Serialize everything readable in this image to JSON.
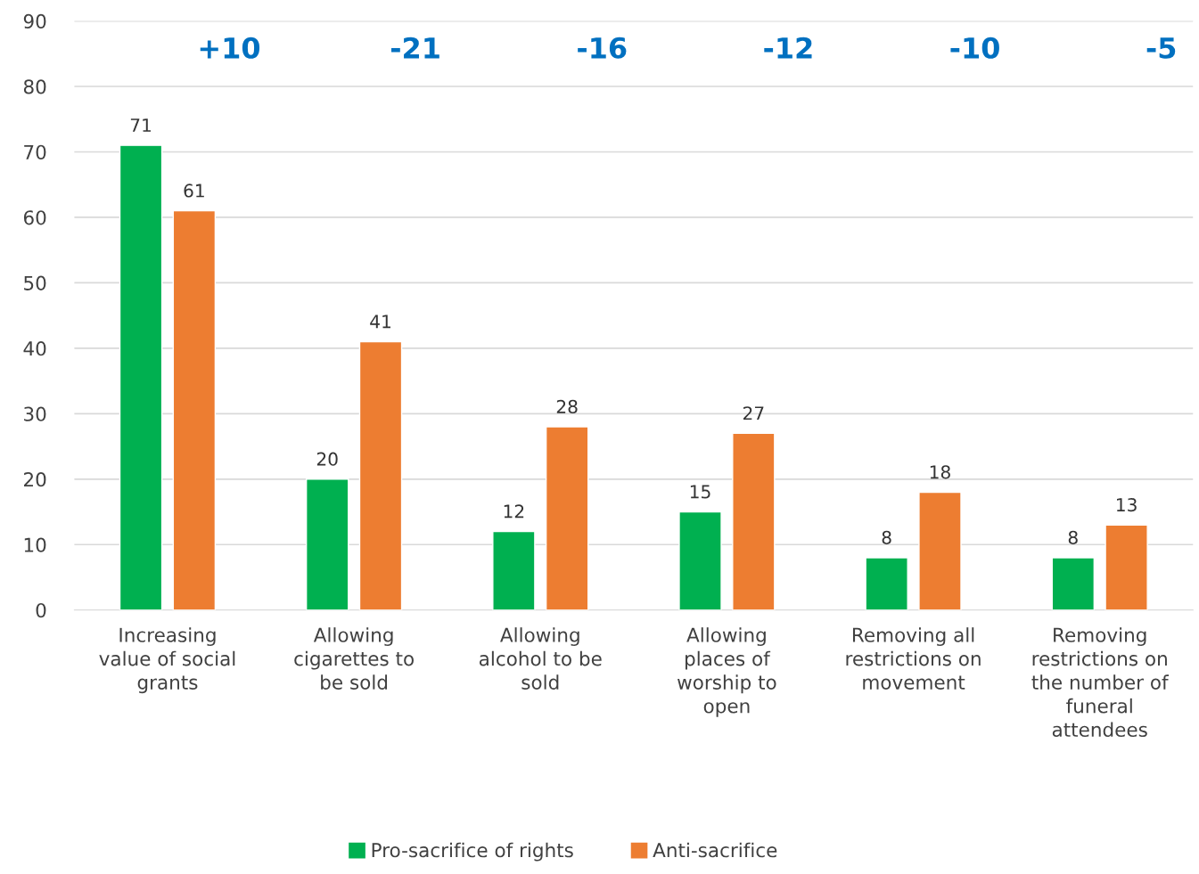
{
  "chart_data": {
    "type": "bar",
    "categories": [
      "Increasing\nvalue of social\ngrants",
      "Allowing\ncigarettes to\nbe sold",
      "Allowing\nalcohol to be\nsold",
      "Allowing\nplaces of\nworship to\nopen",
      "Removing all\nrestrictions on\nmovement",
      "Removing\nrestrictions on\nthe number of\nfuneral\nattendees"
    ],
    "series": [
      {
        "name": "Pro-sacrifice of rights",
        "color": "#00b050",
        "values": [
          71,
          20,
          12,
          15,
          8,
          8
        ]
      },
      {
        "name": "Anti-sacrifice",
        "color": "#ed7d31",
        "values": [
          61,
          41,
          28,
          27,
          18,
          13
        ]
      }
    ],
    "ylim": [
      0,
      90
    ],
    "yticks": [
      0,
      10,
      20,
      30,
      40,
      50,
      60,
      70,
      80,
      90
    ],
    "grid": "y",
    "legend": "bottom",
    "data_labels": true,
    "annotations": [
      "+10",
      "-21",
      "-16",
      "-12",
      "-10",
      "-5"
    ]
  }
}
